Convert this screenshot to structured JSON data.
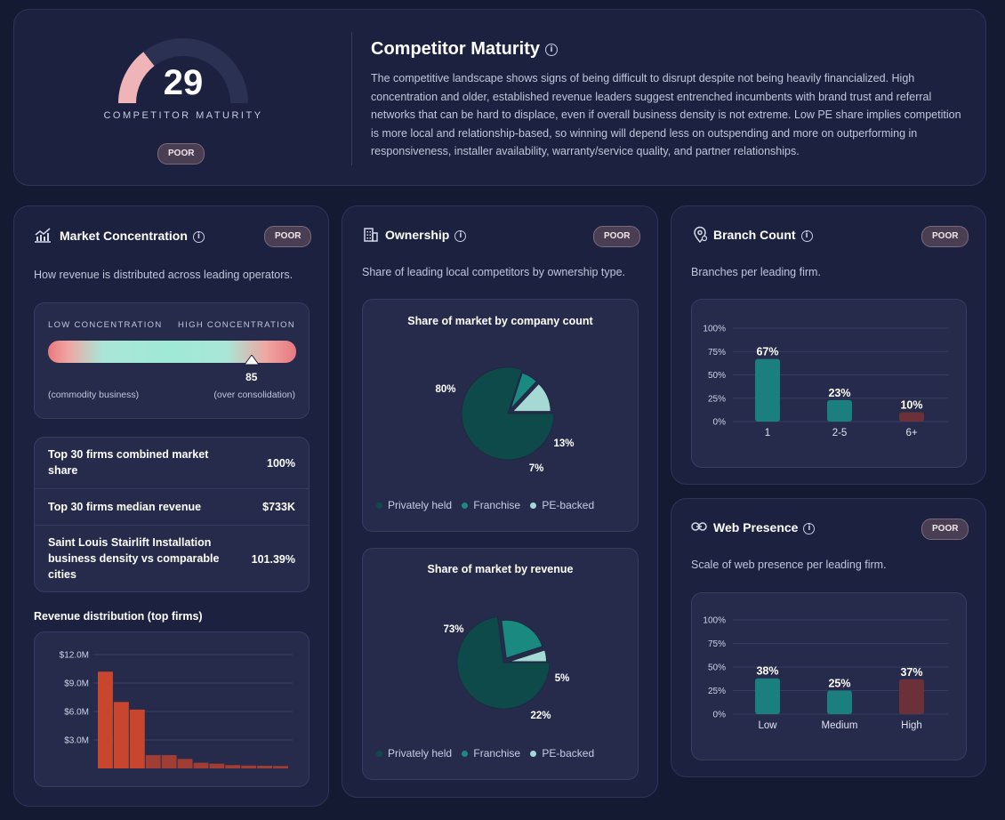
{
  "summary": {
    "gauge_value": "29",
    "gauge_fraction": 0.29,
    "gauge_label": "COMPETITOR MATURITY",
    "rating": "POOR",
    "title": "Competitor Maturity",
    "text": "The competitive landscape shows signs of being difficult to disrupt despite not being heavily financialized. High concentration and older, established revenue leaders suggest entrenched incumbents with brand trust and referral networks that can be hard to displace, even if overall business density is not extreme. Low PE share implies competition is more local and relationship-based, so winning will depend less on outspending and more on outperforming in responsiveness, installer availability, warranty/service quality, and partner relationships."
  },
  "market": {
    "title": "Market Concentration",
    "badge": "POOR",
    "desc": "How revenue is distributed across leading operators.",
    "low_label": "LOW CONCENTRATION",
    "high_label": "HIGH CONCENTRATION",
    "value": "85",
    "value_fraction": 0.85,
    "left_note": "(commodity business)",
    "right_note": "(over consolidation)",
    "rows": [
      {
        "label": "Top 30 firms combined market share",
        "value": "100%"
      },
      {
        "label": "Top 30 firms median revenue",
        "value": "$733K"
      },
      {
        "label": "Saint Louis Stairlift Installation business density vs comparable cities",
        "value": "101.39%"
      }
    ],
    "rev_title": "Revenue distribution (top firms)"
  },
  "ownership": {
    "title": "Ownership",
    "badge": "POOR",
    "desc": "Share of leading local competitors by ownership type.",
    "chart1_title": "Share of market by company count",
    "chart2_title": "Share of market by revenue",
    "legend": [
      "Privately held",
      "Franchise",
      "PE-backed"
    ],
    "colors": [
      "#0f4a4a",
      "#1a8a80",
      "#a6d8d4"
    ]
  },
  "branch": {
    "title": "Branch Count",
    "badge": "POOR",
    "desc": "Branches per leading firm."
  },
  "web": {
    "title": "Web Presence",
    "badge": "POOR",
    "desc": "Scale of web presence per leading firm."
  },
  "chart_data": [
    {
      "type": "bar",
      "id": "revenue",
      "title": "Revenue distribution (top firms)",
      "yticks": [
        "$3.0M",
        "$6.0M",
        "$9.0M",
        "$12.0M"
      ],
      "ylim": [
        0,
        12.0
      ],
      "values": [
        10.2,
        7.0,
        6.2,
        1.4,
        1.4,
        1.0,
        0.6,
        0.5,
        0.35,
        0.3,
        0.28,
        0.25
      ],
      "color": "#c9462e"
    },
    {
      "type": "pie",
      "id": "count",
      "title": "Share of market by company count",
      "labels": [
        "Privately held",
        "Franchise",
        "PE-backed"
      ],
      "values": [
        80,
        7,
        13
      ],
      "value_labels": [
        "80%",
        "7%",
        "13%"
      ]
    },
    {
      "type": "pie",
      "id": "revenue-share",
      "title": "Share of market by revenue",
      "labels": [
        "Privately held",
        "Franchise",
        "PE-backed"
      ],
      "values": [
        73,
        22,
        5
      ],
      "value_labels": [
        "73%",
        "22%",
        "5%"
      ]
    },
    {
      "type": "bar",
      "id": "branch",
      "categories": [
        "1",
        "2-5",
        "6+"
      ],
      "values": [
        67,
        23,
        10
      ],
      "value_labels": [
        "67%",
        "23%",
        "10%"
      ],
      "yticks": [
        "0%",
        "25%",
        "50%",
        "75%",
        "100%"
      ],
      "ylim": [
        0,
        100
      ],
      "colors": [
        "#1a7f7e",
        "#1a7f7e",
        "#6b3038"
      ]
    },
    {
      "type": "bar",
      "id": "web",
      "categories": [
        "Low",
        "Medium",
        "High"
      ],
      "values": [
        38,
        25,
        37
      ],
      "value_labels": [
        "38%",
        "25%",
        "37%"
      ],
      "yticks": [
        "0%",
        "25%",
        "50%",
        "75%",
        "100%"
      ],
      "ylim": [
        0,
        100
      ],
      "colors": [
        "#1a7f7e",
        "#1a7f7e",
        "#6b3038"
      ]
    }
  ]
}
